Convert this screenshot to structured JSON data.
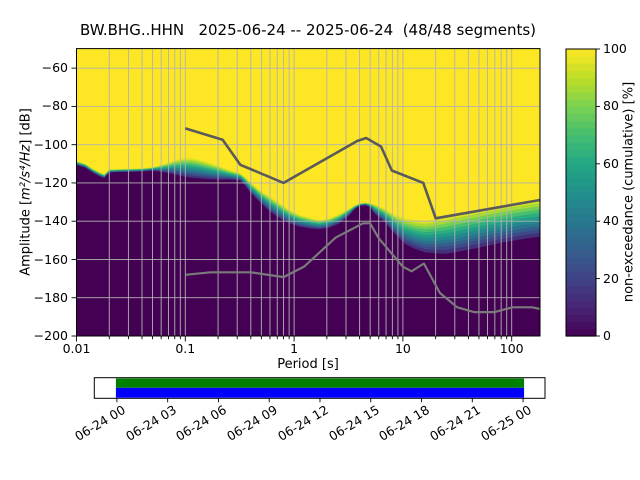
{
  "title": "BW.BHG..HHN   2025-06-24 -- 2025-06-24  (48/48 segments)",
  "axes": {
    "xlabel": "Period [s]",
    "ylabel_prefix": "Amplitude [",
    "ylabel_math": "m²/s⁴/Hz",
    "ylabel_suffix": "] [dB]",
    "x_ticks": [
      {
        "v": 0.01,
        "label": "0.01"
      },
      {
        "v": 0.1,
        "label": "0.1"
      },
      {
        "v": 1,
        "label": "1"
      },
      {
        "v": 10,
        "label": "10"
      },
      {
        "v": 100,
        "label": "100"
      }
    ],
    "y_ticks": [
      {
        "v": -60,
        "label": "−60"
      },
      {
        "v": -80,
        "label": "−80"
      },
      {
        "v": -100,
        "label": "−100"
      },
      {
        "v": -120,
        "label": "−120"
      },
      {
        "v": -140,
        "label": "−140"
      },
      {
        "v": -160,
        "label": "−160"
      },
      {
        "v": -180,
        "label": "−180"
      },
      {
        "v": -200,
        "label": "−200"
      }
    ]
  },
  "colorbar": {
    "label": "non-exceedance (cumulative) [%]",
    "ticks": [
      {
        "v": 0,
        "label": "0"
      },
      {
        "v": 20,
        "label": "20"
      },
      {
        "v": 40,
        "label": "40"
      },
      {
        "v": 60,
        "label": "60"
      },
      {
        "v": 80,
        "label": "80"
      },
      {
        "v": 100,
        "label": "100"
      }
    ]
  },
  "timeline": {
    "labels": [
      "06-24 00",
      "06-24 03",
      "06-24 06",
      "06-24 09",
      "06-24 12",
      "06-24 15",
      "06-24 18",
      "06-24 21",
      "06-25 00"
    ]
  },
  "chart_data": {
    "type": "heatmap",
    "description": "PPSD cumulative non-exceedance distribution: yellow = 100%, dark purple = 0%. Distribution band encoded as upper (100%) and lower (0%) dB edges versus period.",
    "x_axis": {
      "scale": "log",
      "min": 0.01,
      "max": 182,
      "label": "Period [s]"
    },
    "y_axis": {
      "min": -200,
      "max": -50,
      "label": "Amplitude [m2/s4/Hz] [dB]"
    },
    "colormap": "viridis",
    "distribution_edges": [
      [
        0.01,
        -108.6,
        -110.6
      ],
      [
        0.012,
        -110.0,
        -112.0
      ],
      [
        0.014,
        -112.5,
        -114.5
      ],
      [
        0.016,
        -114.2,
        -116.3
      ],
      [
        0.018,
        -115.5,
        -117.5
      ],
      [
        0.02,
        -113.0,
        -114.6
      ],
      [
        0.024,
        -112.8,
        -114.3
      ],
      [
        0.03,
        -112.6,
        -114.3
      ],
      [
        0.04,
        -112.4,
        -114.0
      ],
      [
        0.05,
        -111.8,
        -113.6
      ],
      [
        0.06,
        -110.6,
        -114.2
      ],
      [
        0.07,
        -109.4,
        -114.9
      ],
      [
        0.08,
        -108.2,
        -115.6
      ],
      [
        0.095,
        -107.2,
        -116.5
      ],
      [
        0.11,
        -107.0,
        -117.2
      ],
      [
        0.13,
        -107.6,
        -117.6
      ],
      [
        0.16,
        -109.2,
        -118.0
      ],
      [
        0.2,
        -111.0,
        -118.3
      ],
      [
        0.25,
        -113.2,
        -118.2
      ],
      [
        0.32,
        -115.0,
        -118.7
      ],
      [
        0.355,
        -116.9,
        -121.4
      ],
      [
        0.39,
        -119.3,
        -124.6
      ],
      [
        0.48,
        -123.7,
        -129.8
      ],
      [
        0.6,
        -127.2,
        -135.0
      ],
      [
        0.74,
        -130.7,
        -138.6
      ],
      [
        0.91,
        -134.2,
        -141.2
      ],
      [
        1.13,
        -136.8,
        -142.9
      ],
      [
        1.4,
        -138.3,
        -143.8
      ],
      [
        1.7,
        -139.5,
        -144.2
      ],
      [
        2.1,
        -138.6,
        -143.5
      ],
      [
        2.6,
        -136.4,
        -141.2
      ],
      [
        3.2,
        -133.5,
        -137.0
      ],
      [
        3.6,
        -131.8,
        -133.8
      ],
      [
        4.0,
        -130.8,
        -132.0
      ],
      [
        4.5,
        -130.3,
        -131.7
      ],
      [
        5.0,
        -130.7,
        -132.6
      ],
      [
        5.5,
        -131.2,
        -136.1
      ],
      [
        6.8,
        -133.6,
        -140.5
      ],
      [
        8.4,
        -136.6,
        -146.6
      ],
      [
        10.4,
        -138.5,
        -151.9
      ],
      [
        12.9,
        -139.6,
        -154.5
      ],
      [
        16.0,
        -139.9,
        -156.3
      ],
      [
        20.0,
        -138.9,
        -156.8
      ],
      [
        25.0,
        -137.7,
        -157.0
      ],
      [
        32.0,
        -136.3,
        -156.0
      ],
      [
        45.0,
        -134.6,
        -154.3
      ],
      [
        60.0,
        -133.2,
        -152.8
      ],
      [
        80.0,
        -131.9,
        -151.3
      ],
      [
        110.0,
        -130.5,
        -149.9
      ],
      [
        140.0,
        -129.6,
        -148.9
      ],
      [
        182.0,
        -128.7,
        -148.1
      ]
    ],
    "band_fractions": [
      0,
      0.09,
      0.18,
      0.27,
      0.36,
      0.45,
      0.54,
      0.63,
      0.72,
      0.81,
      0.9,
      1.0
    ],
    "noise_models": {
      "nhnm": [
        [
          0.1,
          -91.5
        ],
        [
          0.22,
          -97.4
        ],
        [
          0.32,
          -110.5
        ],
        [
          0.8,
          -120.0
        ],
        [
          3.8,
          -98.1
        ],
        [
          4.6,
          -96.5
        ],
        [
          6.3,
          -101.0
        ],
        [
          7.9,
          -113.5
        ],
        [
          15.4,
          -120.0
        ],
        [
          20.0,
          -138.5
        ],
        [
          182.0,
          -128.9
        ]
      ],
      "nlnm": [
        [
          0.1,
          -168.0
        ],
        [
          0.17,
          -166.7
        ],
        [
          0.4,
          -166.7
        ],
        [
          0.8,
          -169.2
        ],
        [
          1.24,
          -163.7
        ],
        [
          2.4,
          -148.6
        ],
        [
          4.3,
          -141.1
        ],
        [
          5.0,
          -141.1
        ],
        [
          6.0,
          -149.0
        ],
        [
          10.0,
          -163.8
        ],
        [
          12.0,
          -166.2
        ],
        [
          15.6,
          -162.1
        ],
        [
          21.9,
          -177.5
        ],
        [
          31.6,
          -185.0
        ],
        [
          45.0,
          -187.5
        ],
        [
          70.0,
          -187.5
        ],
        [
          101.0,
          -185.0
        ],
        [
          154.0,
          -185.0
        ],
        [
          182.0,
          -185.9
        ]
      ]
    },
    "colors": {
      "viridis_anchors": [
        "#440154",
        "#482475",
        "#404387",
        "#345e8d",
        "#29788e",
        "#21908c",
        "#22a784",
        "#44be70",
        "#7ad151",
        "#bdde26",
        "#fde725"
      ],
      "background_top": "#fde725",
      "background_bottom": "#440154",
      "grid": "#b2b2b2",
      "nhnm_line": "#5a5a5a",
      "nlnm_line": "#7a7a7a",
      "coverage_green": "#008000",
      "coverage_blue": "#0000ff"
    }
  }
}
